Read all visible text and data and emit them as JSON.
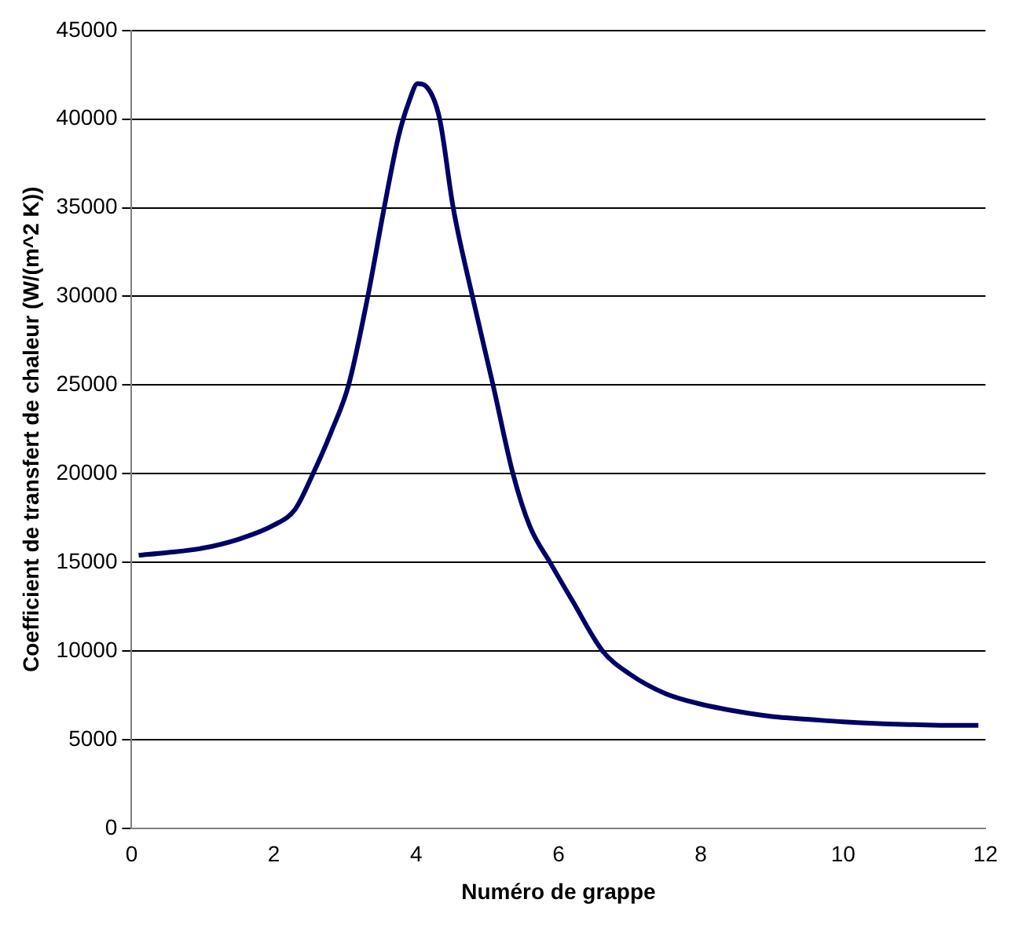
{
  "chart_data": {
    "type": "line",
    "xlabel": "Numéro de grappe",
    "ylabel": "Coefficient de transfert de chaleur (W/(m^2 K))",
    "x": [
      0.1,
      0.5,
      1,
      1.5,
      2,
      2.3,
      2.55,
      2.8,
      3.05,
      3.32,
      3.55,
      3.75,
      3.9,
      4.02,
      4.15,
      4.33,
      4.52,
      4.79,
      5.08,
      5.36,
      5.6,
      5.88,
      6.2,
      6.62,
      7,
      7.5,
      8,
      8.5,
      9,
      9.5,
      10,
      10.5,
      11,
      11.5,
      11.9
    ],
    "series": [
      {
        "color": "#000066",
        "values": [
          15400,
          15550,
          15800,
          16300,
          17100,
          18000,
          20000,
          22300,
          25000,
          30000,
          35000,
          39000,
          41000,
          42000,
          41800,
          40000,
          35000,
          30000,
          25000,
          20000,
          17000,
          15000,
          12800,
          10000,
          8700,
          7600,
          7000,
          6600,
          6300,
          6150,
          6000,
          5900,
          5850,
          5800,
          5800
        ]
      }
    ],
    "xlim": [
      0,
      12
    ],
    "xticks": [
      0,
      2,
      4,
      6,
      8,
      10,
      12
    ],
    "ylim": [
      0,
      45000
    ],
    "yticks": [
      0,
      5000,
      10000,
      15000,
      20000,
      25000,
      30000,
      35000,
      40000,
      45000
    ],
    "grid": "y",
    "legend": false,
    "marker": "none",
    "line_style": "solid"
  }
}
